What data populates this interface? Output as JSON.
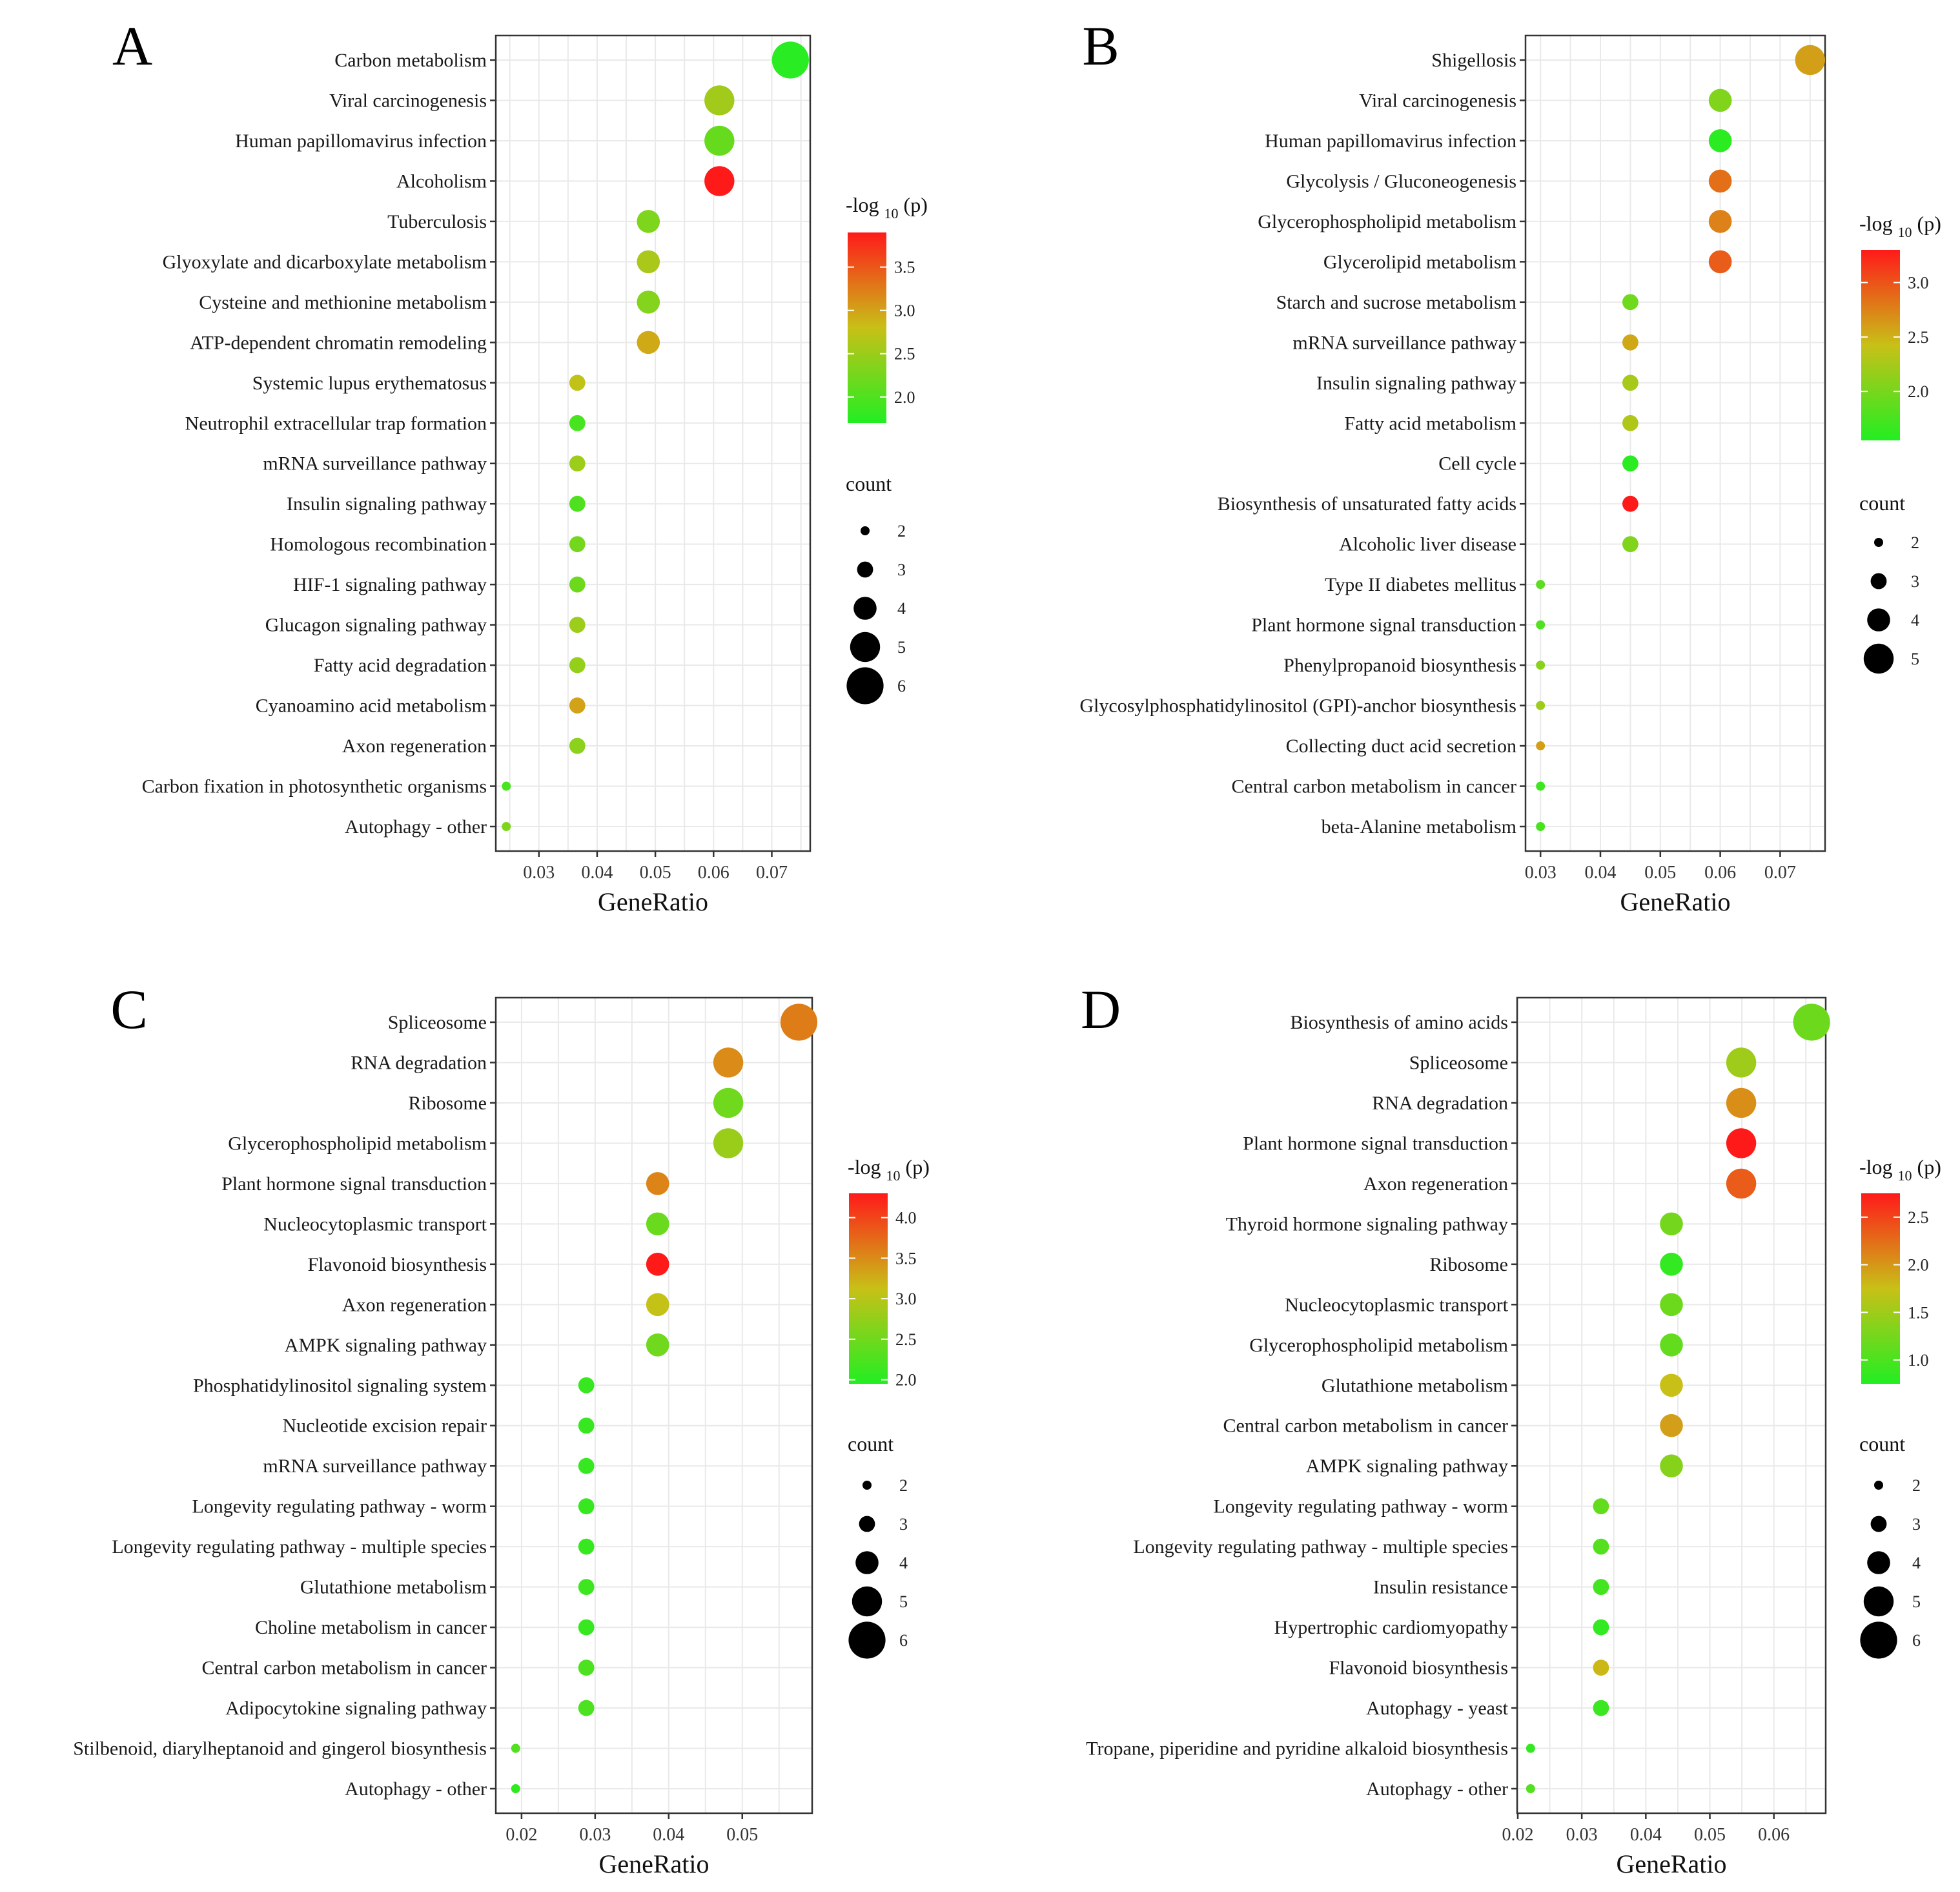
{
  "legend_titles": {
    "color_main": "-log",
    "color_sub": "10",
    "color_tail": "(p)",
    "size": "count"
  },
  "palette": {
    "low": "#22ee22",
    "mid": "#c8c017",
    "high": "#ff1a1a",
    "grid": "#e9e9e9"
  },
  "chart_data": [
    {
      "type": "scatter",
      "panel": "A",
      "xlabel": "GeneRatio",
      "ylabel": "",
      "xlim": [
        0.0226,
        0.0766
      ],
      "xticks": [
        0.03,
        0.04,
        0.05,
        0.06,
        0.07
      ],
      "xtick_labels": [
        "0.03",
        "0.04",
        "0.05",
        "0.06",
        "0.07"
      ],
      "color_legend_title": "-log10(p)",
      "color_range": [
        1.7,
        3.9
      ],
      "color_ticks": [
        2.0,
        2.5,
        3.0,
        3.5
      ],
      "color_tick_labels": [
        "2.0",
        "2.5",
        "3.0",
        "3.5"
      ],
      "size_legend_title": "count",
      "size_ticks": [
        2,
        3,
        4,
        5,
        6
      ],
      "size_tick_labels": [
        "2",
        "3",
        "4",
        "5",
        "6"
      ],
      "categories": [
        "Carbon metabolism",
        "Viral carcinogenesis",
        "Human papillomavirus infection",
        "Alcoholism",
        "Tuberculosis",
        "Glyoxylate and dicarboxylate metabolism",
        "Cysteine and methionine metabolism",
        "ATP-dependent chromatin remodeling",
        "Systemic lupus erythematosus",
        "Neutrophil extracellular trap formation",
        "mRNA surveillance pathway",
        "Insulin signaling pathway",
        "Homologous recombination",
        "HIF-1 signaling pathway",
        "Glucagon signaling pathway",
        "Fatty acid degradation",
        "Cyanoamino acid metabolism",
        "Axon regeneration",
        "Carbon fixation in photosynthetic organisms",
        "Autophagy - other"
      ],
      "x": [
        0.0732,
        0.061,
        0.061,
        0.061,
        0.0488,
        0.0488,
        0.0488,
        0.0488,
        0.0366,
        0.0366,
        0.0366,
        0.0366,
        0.0366,
        0.0366,
        0.0366,
        0.0366,
        0.0366,
        0.0366,
        0.0244,
        0.0244
      ],
      "count": [
        6,
        5,
        5,
        5,
        4,
        4,
        4,
        4,
        3,
        3,
        3,
        3,
        3,
        3,
        3,
        3,
        3,
        3,
        2,
        2
      ],
      "log10p": [
        1.75,
        2.55,
        2.15,
        3.9,
        2.3,
        2.6,
        2.35,
        2.95,
        2.75,
        1.95,
        2.5,
        2.0,
        2.25,
        2.2,
        2.5,
        2.45,
        3.0,
        2.4,
        1.95,
        2.3
      ]
    },
    {
      "type": "scatter",
      "panel": "B",
      "xlabel": "GeneRatio",
      "ylabel": "",
      "xlim": [
        0.0275,
        0.0775
      ],
      "xticks": [
        0.03,
        0.04,
        0.05,
        0.06,
        0.07
      ],
      "xtick_labels": [
        "0.03",
        "0.04",
        "0.05",
        "0.06",
        "0.07"
      ],
      "color_legend_title": "-log10(p)",
      "color_range": [
        1.55,
        3.3
      ],
      "color_ticks": [
        2.0,
        2.5,
        3.0
      ],
      "color_tick_labels": [
        "2.0",
        "2.5",
        "3.0"
      ],
      "size_legend_title": "count",
      "size_ticks": [
        2,
        3,
        4,
        5
      ],
      "size_tick_labels": [
        "2",
        "3",
        "4",
        "5"
      ],
      "categories": [
        "Shigellosis",
        "Viral carcinogenesis",
        "Human papillomavirus infection",
        "Glycolysis / Gluconeogenesis",
        "Glycerophospholipid metabolism",
        "Glycerolipid metabolism",
        "Starch and sucrose metabolism",
        "mRNA surveillance pathway",
        "Insulin signaling pathway",
        "Fatty acid metabolism",
        "Cell cycle",
        "Biosynthesis of unsaturated fatty acids",
        "Alcoholic liver disease",
        "Type II diabetes mellitus",
        "Plant hormone signal transduction",
        "Phenylpropanoid biosynthesis",
        "Glycosylphosphatidylinositol (GPI)-anchor biosynthesis",
        "Collecting duct acid secretion",
        "Central carbon metabolism in cancer",
        "beta-Alanine metabolism"
      ],
      "x": [
        0.075,
        0.06,
        0.06,
        0.06,
        0.06,
        0.06,
        0.045,
        0.045,
        0.045,
        0.045,
        0.045,
        0.045,
        0.045,
        0.03,
        0.03,
        0.03,
        0.03,
        0.03,
        0.03,
        0.03
      ],
      "count": [
        5,
        4,
        4,
        4,
        4,
        4,
        3,
        3,
        3,
        3,
        3,
        3,
        3,
        2,
        2,
        2,
        2,
        2,
        2,
        2
      ],
      "log10p": [
        2.6,
        2.05,
        1.6,
        2.85,
        2.75,
        2.95,
        1.95,
        2.55,
        2.25,
        2.3,
        1.6,
        3.3,
        2.05,
        1.85,
        1.8,
        2.1,
        2.2,
        2.6,
        1.7,
        1.75
      ]
    },
    {
      "type": "scatter",
      "panel": "C",
      "xlabel": "GeneRatio",
      "ylabel": "",
      "xlim": [
        0.0165,
        0.0595
      ],
      "xticks": [
        0.02,
        0.03,
        0.04,
        0.05
      ],
      "xtick_labels": [
        "0.02",
        "0.03",
        "0.04",
        "0.05"
      ],
      "color_legend_title": "-log10(p)",
      "color_range": [
        1.95,
        4.3
      ],
      "color_ticks": [
        2.0,
        2.5,
        3.0,
        3.5,
        4.0
      ],
      "color_tick_labels": [
        "2.0",
        "2.5",
        "3.0",
        "3.5",
        "4.0"
      ],
      "size_legend_title": "count",
      "size_ticks": [
        2,
        3,
        4,
        5,
        6
      ],
      "size_tick_labels": [
        "2",
        "3",
        "4",
        "5",
        "6"
      ],
      "categories": [
        "Spliceosome",
        "RNA degradation",
        "Ribosome",
        "Glycerophospholipid metabolism",
        "Plant hormone signal transduction",
        "Nucleocytoplasmic transport",
        "Flavonoid biosynthesis",
        "Axon regeneration",
        "AMPK signaling pathway",
        "Phosphatidylinositol signaling system",
        "Nucleotide excision repair",
        "mRNA surveillance pathway",
        "Longevity regulating pathway - worm",
        "Longevity regulating pathway - multiple species",
        "Glutathione metabolism",
        "Choline metabolism in cancer",
        "Central carbon metabolism in cancer",
        "Adipocytokine signaling pathway",
        "Stilbenoid, diarylheptanoid and gingerol biosynthesis",
        "Autophagy - other"
      ],
      "x": [
        0.0577,
        0.0481,
        0.0481,
        0.0481,
        0.0385,
        0.0385,
        0.0385,
        0.0385,
        0.0385,
        0.0288,
        0.0288,
        0.0288,
        0.0288,
        0.0288,
        0.0288,
        0.0288,
        0.0288,
        0.0288,
        0.0192,
        0.0192
      ],
      "count": [
        6,
        5,
        5,
        5,
        4,
        4,
        4,
        4,
        4,
        3,
        3,
        3,
        3,
        3,
        3,
        3,
        3,
        3,
        2,
        2
      ],
      "log10p": [
        3.6,
        3.5,
        2.5,
        2.8,
        3.55,
        2.45,
        4.3,
        3.1,
        2.5,
        2.1,
        2.1,
        2.1,
        2.1,
        2.1,
        2.15,
        2.1,
        2.25,
        2.25,
        2.3,
        2.05
      ]
    },
    {
      "type": "scatter",
      "panel": "D",
      "xlabel": "GeneRatio",
      "ylabel": "",
      "xlim": [
        0.0199,
        0.0681
      ],
      "xticks": [
        0.02,
        0.03,
        0.04,
        0.05,
        0.06
      ],
      "xtick_labels": [
        "0.02",
        "0.03",
        "0.04",
        "0.05",
        "0.06"
      ],
      "color_legend_title": "-log10(p)",
      "color_range": [
        0.75,
        2.75
      ],
      "color_ticks": [
        1.0,
        1.5,
        2.0,
        2.5
      ],
      "color_tick_labels": [
        "1.0",
        "1.5",
        "2.0",
        "2.5"
      ],
      "size_legend_title": "count",
      "size_ticks": [
        2,
        3,
        4,
        5,
        6
      ],
      "size_tick_labels": [
        "2",
        "3",
        "4",
        "5",
        "6"
      ],
      "categories": [
        "Biosynthesis of amino acids",
        "Spliceosome",
        "RNA degradation",
        "Plant hormone signal transduction",
        "Axon regeneration",
        "Thyroid hormone signaling pathway",
        "Ribosome",
        "Nucleocytoplasmic transport",
        "Glycerophospholipid metabolism",
        "Glutathione metabolism",
        "Central carbon metabolism in cancer",
        "AMPK signaling pathway",
        "Longevity regulating pathway - worm",
        "Longevity regulating pathway - multiple species",
        "Insulin resistance",
        "Hypertrophic cardiomyopathy",
        "Flavonoid biosynthesis",
        "Autophagy - yeast",
        "Tropane, piperidine and pyridine alkaloid biosynthesis",
        "Autophagy - other"
      ],
      "x": [
        0.0659,
        0.0549,
        0.0549,
        0.0549,
        0.0549,
        0.044,
        0.044,
        0.044,
        0.044,
        0.044,
        0.044,
        0.044,
        0.033,
        0.033,
        0.033,
        0.033,
        0.033,
        0.033,
        0.022,
        0.022
      ],
      "count": [
        6,
        5,
        5,
        5,
        5,
        4,
        4,
        4,
        4,
        4,
        4,
        4,
        3,
        3,
        3,
        3,
        3,
        3,
        2,
        2
      ],
      "log10p": [
        1.2,
        1.5,
        2.05,
        2.75,
        2.35,
        1.25,
        0.85,
        1.2,
        1.15,
        1.75,
        1.95,
        1.35,
        1.15,
        1.05,
        0.95,
        0.85,
        1.8,
        0.9,
        0.85,
        1.05
      ]
    }
  ]
}
